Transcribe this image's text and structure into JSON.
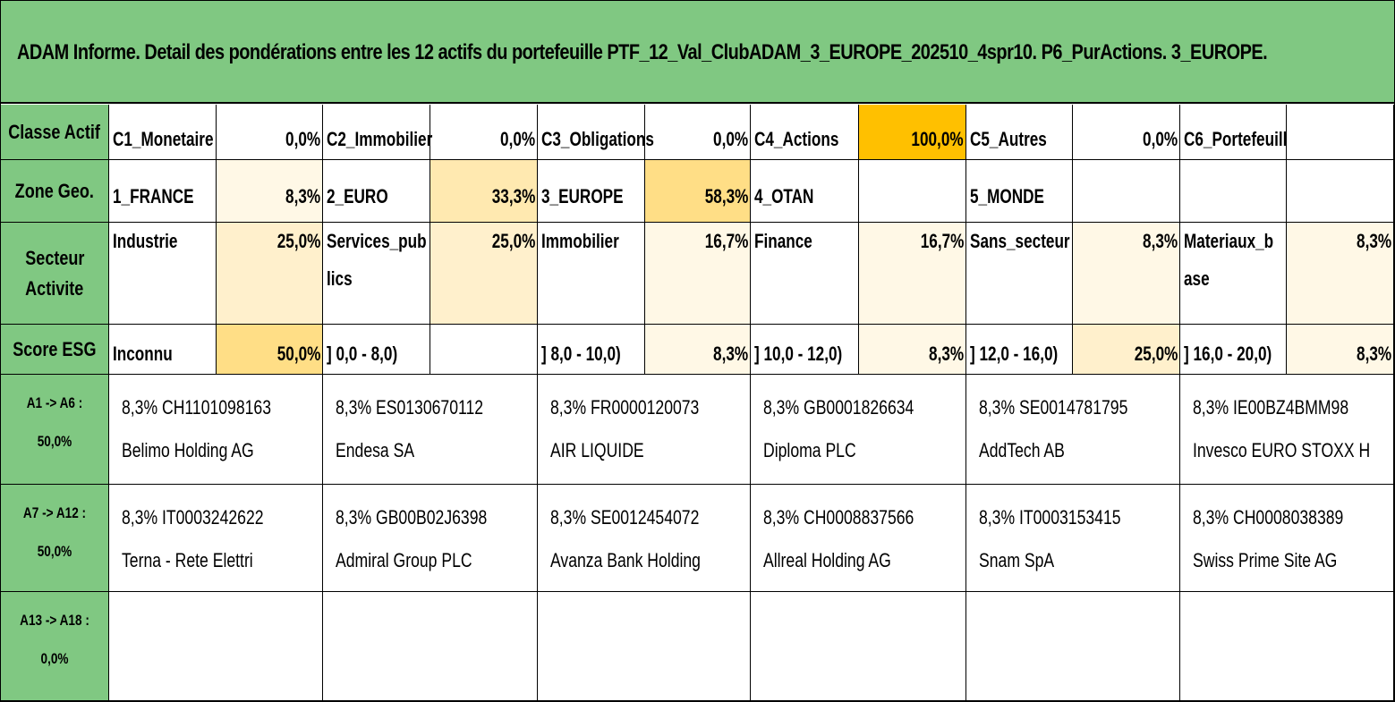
{
  "title": "ADAM Informe. Detail des pondérations entre les 12 actifs du portefeuille PTF_12_Val_ClubADAM_3_EUROPE_202510_4spr10. P6_PurActions. 3_EUROPE.",
  "colors": {
    "header_green": "#80c882",
    "weight_very_light": "#fff8e6",
    "weight_light": "#fff0cc",
    "weight_medium": "#ffe9b0",
    "weight_strong": "#ffde86",
    "weight_max": "#ffc000"
  },
  "classe_actif": {
    "header": "Classe Actif",
    "items": [
      {
        "label": "C1_Monetaire",
        "value": "0,0%"
      },
      {
        "label": "C2_Immobilier",
        "value": "0,0%"
      },
      {
        "label": "C3_Obligations",
        "value": "0,0%"
      },
      {
        "label": "C4_Actions",
        "value": "100,0%"
      },
      {
        "label": "C5_Autres",
        "value": "0,0%"
      },
      {
        "label": "C6_Portefeuill",
        "value": ""
      }
    ]
  },
  "zone_geo": {
    "header": "Zone Geo.",
    "items": [
      {
        "label": "1_FRANCE",
        "value": "8,3%"
      },
      {
        "label": "2_EURO",
        "value": "33,3%"
      },
      {
        "label": "3_EUROPE",
        "value": "58,3%"
      },
      {
        "label": "4_OTAN",
        "value": ""
      },
      {
        "label": "5_MONDE",
        "value": ""
      },
      {
        "label": "",
        "value": ""
      }
    ]
  },
  "secteur": {
    "header_line1": "Secteur",
    "header_line2": "Activite",
    "items": [
      {
        "label1": "Industrie",
        "label2": "",
        "value": "25,0%"
      },
      {
        "label1": "Services_pub",
        "label2": "lics",
        "value": "25,0%"
      },
      {
        "label1": "Immobilier",
        "label2": "",
        "value": "16,7%"
      },
      {
        "label1": "Finance",
        "label2": "",
        "value": "16,7%"
      },
      {
        "label1": "Sans_secteur",
        "label2": "",
        "value": "8,3%"
      },
      {
        "label1": "Materiaux_b",
        "label2": "ase",
        "value": "8,3%"
      }
    ]
  },
  "score_esg": {
    "header": "Score ESG",
    "items": [
      {
        "label": "Inconnu",
        "value": "50,0%"
      },
      {
        "label": "] 0,0 - 8,0)",
        "value": ""
      },
      {
        "label": "] 8,0 - 10,0)",
        "value": "8,3%"
      },
      {
        "label": "] 10,0 - 12,0)",
        "value": "8,3%"
      },
      {
        "label": "] 12,0 - 16,0)",
        "value": "25,0%"
      },
      {
        "label": "] 16,0 - 20,0)",
        "value": "8,3%"
      }
    ]
  },
  "asset_groups": [
    {
      "label1": "A1 -> A6 :",
      "label2": "50,0%",
      "assets": [
        {
          "line1": "8,3% CH1101098163",
          "line2": "Belimo Holding AG"
        },
        {
          "line1": "8,3% ES0130670112",
          "line2": "Endesa SA"
        },
        {
          "line1": "8,3% FR0000120073",
          "line2": "AIR LIQUIDE"
        },
        {
          "line1": "8,3% GB0001826634",
          "line2": "Diploma PLC"
        },
        {
          "line1": "8,3% SE0014781795",
          "line2": "AddTech AB"
        },
        {
          "line1": "8,3% IE00BZ4BMM98",
          "line2": "Invesco EURO STOXX H"
        }
      ]
    },
    {
      "label1": "A7 -> A12 :",
      "label2": "50,0%",
      "assets": [
        {
          "line1": "8,3% IT0003242622",
          "line2": "Terna - Rete Elettri"
        },
        {
          "line1": "8,3% GB00B02J6398",
          "line2": "Admiral Group PLC"
        },
        {
          "line1": "8,3% SE0012454072",
          "line2": "Avanza Bank Holding"
        },
        {
          "line1": "8,3% CH0008837566",
          "line2": "Allreal Holding AG"
        },
        {
          "line1": "8,3% IT0003153415",
          "line2": "Snam SpA"
        },
        {
          "line1": "8,3% CH0008038389",
          "line2": "Swiss Prime Site AG"
        }
      ]
    },
    {
      "label1": "A13 -> A18 :",
      "label2": "0,0%",
      "assets": [
        {
          "line1": "",
          "line2": ""
        },
        {
          "line1": "",
          "line2": ""
        },
        {
          "line1": "",
          "line2": ""
        },
        {
          "line1": "",
          "line2": ""
        },
        {
          "line1": "",
          "line2": ""
        },
        {
          "line1": "",
          "line2": ""
        }
      ]
    }
  ]
}
